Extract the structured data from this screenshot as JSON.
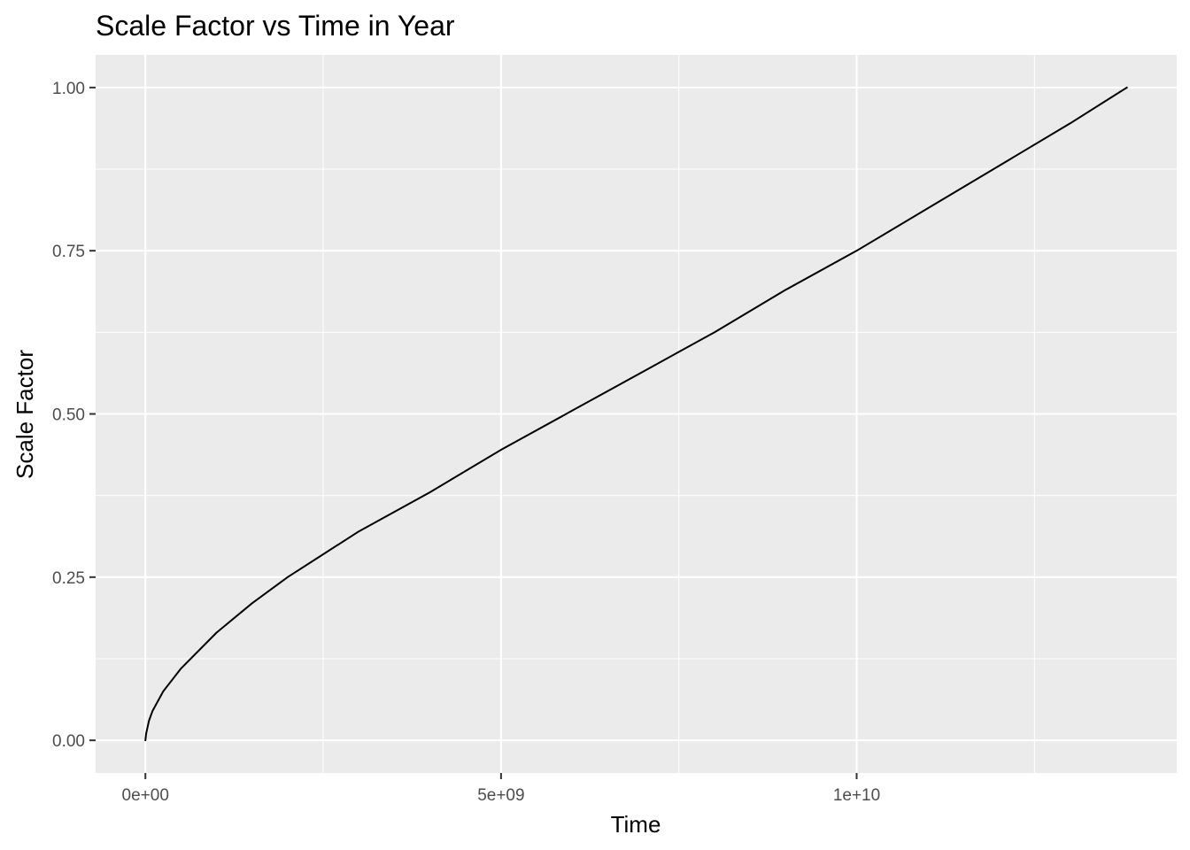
{
  "chart_data": {
    "type": "line",
    "title": "Scale Factor vs Time in Year",
    "xlabel": "Time",
    "ylabel": "Scale Factor",
    "xlim": [
      -700000000,
      14500000000
    ],
    "ylim": [
      -0.05,
      1.05
    ],
    "x_ticks": [
      {
        "value": 0,
        "label": "0e+00"
      },
      {
        "value": 5000000000,
        "label": "5e+09"
      },
      {
        "value": 10000000000,
        "label": "1e+10"
      }
    ],
    "x_minor_ticks": [
      2500000000,
      7500000000,
      12500000000
    ],
    "y_ticks": [
      {
        "value": 0,
        "label": "0.00"
      },
      {
        "value": 0.25,
        "label": "0.25"
      },
      {
        "value": 0.5,
        "label": "0.50"
      },
      {
        "value": 0.75,
        "label": "0.75"
      },
      {
        "value": 1.0,
        "label": "1.00"
      }
    ],
    "y_minor_ticks": [
      0.125,
      0.375,
      0.625,
      0.875
    ],
    "grid": true,
    "panel_color": "#ebebeb",
    "line_color": "#000000",
    "series": [
      {
        "x": [
          0,
          10000000,
          50000000,
          100000000,
          250000000,
          500000000,
          1000000000,
          1500000000,
          2000000000,
          2500000000,
          3000000000,
          3500000000,
          4000000000,
          5000000000,
          6000000000,
          7000000000,
          8000000000,
          9000000000,
          10000000000,
          11000000000,
          12000000000,
          13000000000,
          13800000000
        ],
        "y": [
          0,
          0.01,
          0.03,
          0.045,
          0.075,
          0.11,
          0.165,
          0.21,
          0.25,
          0.285,
          0.32,
          0.35,
          0.38,
          0.445,
          0.505,
          0.565,
          0.625,
          0.69,
          0.75,
          0.815,
          0.88,
          0.945,
          1.0
        ]
      }
    ]
  }
}
